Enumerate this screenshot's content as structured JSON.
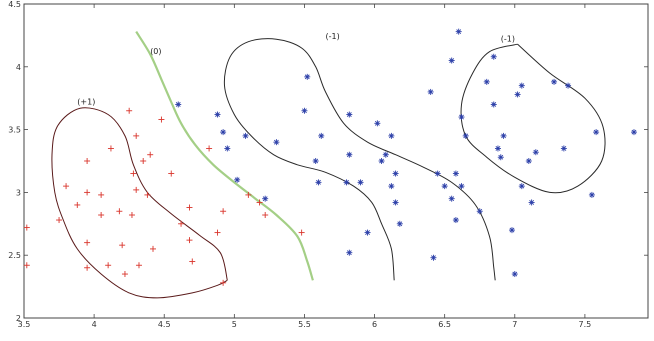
{
  "chart_data": {
    "type": "scatter",
    "xlim": [
      3.5,
      7.95
    ],
    "ylim": [
      2.0,
      4.5
    ],
    "grid": false,
    "legend": "none",
    "x_ticks": [
      {
        "value": 3.5,
        "label": "3.5"
      },
      {
        "value": 4.0,
        "label": "4"
      },
      {
        "value": 4.5,
        "label": "4.5"
      },
      {
        "value": 5.0,
        "label": "5"
      },
      {
        "value": 5.5,
        "label": "5.5"
      },
      {
        "value": 6.0,
        "label": "6"
      },
      {
        "value": 6.5,
        "label": "6.5"
      },
      {
        "value": 7.0,
        "label": "7"
      },
      {
        "value": 7.5,
        "label": "7.5"
      }
    ],
    "y_ticks": [
      {
        "value": 2.0,
        "label": "2"
      },
      {
        "value": 2.5,
        "label": "2.5"
      },
      {
        "value": 3.0,
        "label": "3"
      },
      {
        "value": 3.5,
        "label": "3.5"
      },
      {
        "value": 4.0,
        "label": "4"
      },
      {
        "value": 4.5,
        "label": "4.5"
      }
    ],
    "series": [
      {
        "marker": "plus",
        "color": "#d9342b",
        "points": [
          [
            3.52,
            2.72
          ],
          [
            3.52,
            2.42
          ],
          [
            3.75,
            2.78
          ],
          [
            3.8,
            3.05
          ],
          [
            3.88,
            2.9
          ],
          [
            3.95,
            3.25
          ],
          [
            3.95,
            3.0
          ],
          [
            3.95,
            2.6
          ],
          [
            3.95,
            2.4
          ],
          [
            4.05,
            2.98
          ],
          [
            4.05,
            2.82
          ],
          [
            4.1,
            2.42
          ],
          [
            4.12,
            3.35
          ],
          [
            4.18,
            2.85
          ],
          [
            4.2,
            2.58
          ],
          [
            4.22,
            2.35
          ],
          [
            4.25,
            3.65
          ],
          [
            4.27,
            2.82
          ],
          [
            4.28,
            3.15
          ],
          [
            4.3,
            3.45
          ],
          [
            4.3,
            3.02
          ],
          [
            4.32,
            2.42
          ],
          [
            4.35,
            3.25
          ],
          [
            4.38,
            2.98
          ],
          [
            4.4,
            3.3
          ],
          [
            4.42,
            2.55
          ],
          [
            4.48,
            3.58
          ],
          [
            4.55,
            3.15
          ],
          [
            4.62,
            2.75
          ],
          [
            4.68,
            2.88
          ],
          [
            4.68,
            2.62
          ],
          [
            4.7,
            2.45
          ],
          [
            4.82,
            3.35
          ],
          [
            4.88,
            2.68
          ],
          [
            4.92,
            2.85
          ],
          [
            4.92,
            2.28
          ],
          [
            5.1,
            2.98
          ],
          [
            5.18,
            2.92
          ],
          [
            5.22,
            2.82
          ],
          [
            5.48,
            2.68
          ]
        ]
      },
      {
        "marker": "star",
        "color": "#2b3ea8",
        "points": [
          [
            4.6,
            3.7
          ],
          [
            4.88,
            3.62
          ],
          [
            4.92,
            3.48
          ],
          [
            4.95,
            3.35
          ],
          [
            5.02,
            3.1
          ],
          [
            5.08,
            3.45
          ],
          [
            5.22,
            2.95
          ],
          [
            5.3,
            3.4
          ],
          [
            5.5,
            3.65
          ],
          [
            5.52,
            3.92
          ],
          [
            5.58,
            3.25
          ],
          [
            5.62,
            3.45
          ],
          [
            5.6,
            3.08
          ],
          [
            5.8,
            3.08
          ],
          [
            5.82,
            2.52
          ],
          [
            5.82,
            3.3
          ],
          [
            5.82,
            3.62
          ],
          [
            5.9,
            3.08
          ],
          [
            5.95,
            2.68
          ],
          [
            6.02,
            3.55
          ],
          [
            6.05,
            3.25
          ],
          [
            6.08,
            3.3
          ],
          [
            6.12,
            3.45
          ],
          [
            6.12,
            3.05
          ],
          [
            6.15,
            2.92
          ],
          [
            6.15,
            3.15
          ],
          [
            6.18,
            2.75
          ],
          [
            6.4,
            3.8
          ],
          [
            6.42,
            2.48
          ],
          [
            6.45,
            3.15
          ],
          [
            6.5,
            3.05
          ],
          [
            6.55,
            2.95
          ],
          [
            6.58,
            3.15
          ],
          [
            6.58,
            2.78
          ],
          [
            6.55,
            4.05
          ],
          [
            6.6,
            4.28
          ],
          [
            6.62,
            3.6
          ],
          [
            6.65,
            3.45
          ],
          [
            6.62,
            3.05
          ],
          [
            6.75,
            2.85
          ],
          [
            6.8,
            3.88
          ],
          [
            6.85,
            3.7
          ],
          [
            6.85,
            4.08
          ],
          [
            6.88,
            3.35
          ],
          [
            6.9,
            3.28
          ],
          [
            6.92,
            3.45
          ],
          [
            6.98,
            2.7
          ],
          [
            7.0,
            2.35
          ],
          [
            7.02,
            3.78
          ],
          [
            7.05,
            3.85
          ],
          [
            7.05,
            3.05
          ],
          [
            7.1,
            3.25
          ],
          [
            7.12,
            2.92
          ],
          [
            7.15,
            3.32
          ],
          [
            7.28,
            3.88
          ],
          [
            7.35,
            3.35
          ],
          [
            7.38,
            3.85
          ],
          [
            7.55,
            2.98
          ],
          [
            7.58,
            3.48
          ],
          [
            7.85,
            3.48
          ]
        ]
      }
    ],
    "contours": [
      {
        "label": "(+1)",
        "color": "#5a1a1a",
        "label_at": [
          3.88,
          3.7
        ],
        "points": [
          [
            4.95,
            2.3
          ],
          [
            4.9,
            2.52
          ],
          [
            4.75,
            2.66
          ],
          [
            4.55,
            2.83
          ],
          [
            4.38,
            3.0
          ],
          [
            4.28,
            3.22
          ],
          [
            4.22,
            3.45
          ],
          [
            4.1,
            3.62
          ],
          [
            3.9,
            3.67
          ],
          [
            3.74,
            3.53
          ],
          [
            3.7,
            3.3
          ],
          [
            3.72,
            3.0
          ],
          [
            3.78,
            2.78
          ],
          [
            3.88,
            2.55
          ],
          [
            4.05,
            2.35
          ],
          [
            4.25,
            2.2
          ],
          [
            4.45,
            2.16
          ],
          [
            4.7,
            2.2
          ],
          [
            4.88,
            2.26
          ],
          [
            4.95,
            2.3
          ]
        ]
      },
      {
        "label": "(0)",
        "color": "#a4cf86",
        "label_at": [
          4.4,
          4.1
        ],
        "points": [
          [
            4.3,
            4.28
          ],
          [
            4.4,
            4.1
          ],
          [
            4.48,
            3.9
          ],
          [
            4.55,
            3.72
          ],
          [
            4.62,
            3.55
          ],
          [
            4.72,
            3.38
          ],
          [
            4.85,
            3.22
          ],
          [
            5.0,
            3.08
          ],
          [
            5.15,
            2.95
          ],
          [
            5.3,
            2.82
          ],
          [
            5.45,
            2.65
          ],
          [
            5.52,
            2.45
          ],
          [
            5.56,
            2.3
          ]
        ]
      },
      {
        "label": "(-1)",
        "color": "#2a2a2a",
        "label_at": [
          5.65,
          4.22
        ],
        "points": [
          [
            6.14,
            2.3
          ],
          [
            6.12,
            2.55
          ],
          [
            6.05,
            2.75
          ],
          [
            5.98,
            2.92
          ],
          [
            5.85,
            3.05
          ],
          [
            5.65,
            3.16
          ],
          [
            5.45,
            3.22
          ],
          [
            5.28,
            3.3
          ],
          [
            5.12,
            3.45
          ],
          [
            5.0,
            3.62
          ],
          [
            4.93,
            3.85
          ],
          [
            4.97,
            4.08
          ],
          [
            5.1,
            4.2
          ],
          [
            5.3,
            4.22
          ],
          [
            5.48,
            4.15
          ],
          [
            5.58,
            4.0
          ],
          [
            5.65,
            3.8
          ],
          [
            5.78,
            3.55
          ],
          [
            5.95,
            3.4
          ],
          [
            6.15,
            3.3
          ],
          [
            6.35,
            3.2
          ],
          [
            6.55,
            3.08
          ],
          [
            6.72,
            2.9
          ],
          [
            6.82,
            2.65
          ],
          [
            6.85,
            2.4
          ],
          [
            6.86,
            2.3
          ]
        ]
      },
      {
        "label": "(-1)",
        "color": "#2a2a2a",
        "label_at": [
          6.9,
          4.2
        ],
        "points": [
          [
            7.02,
            4.18
          ],
          [
            7.25,
            3.95
          ],
          [
            7.5,
            3.75
          ],
          [
            7.63,
            3.52
          ],
          [
            7.62,
            3.25
          ],
          [
            7.45,
            3.05
          ],
          [
            7.25,
            3.0
          ],
          [
            7.0,
            3.12
          ],
          [
            6.8,
            3.28
          ],
          [
            6.65,
            3.45
          ],
          [
            6.62,
            3.7
          ],
          [
            6.7,
            3.95
          ],
          [
            6.82,
            4.12
          ],
          [
            7.02,
            4.18
          ]
        ]
      }
    ]
  }
}
